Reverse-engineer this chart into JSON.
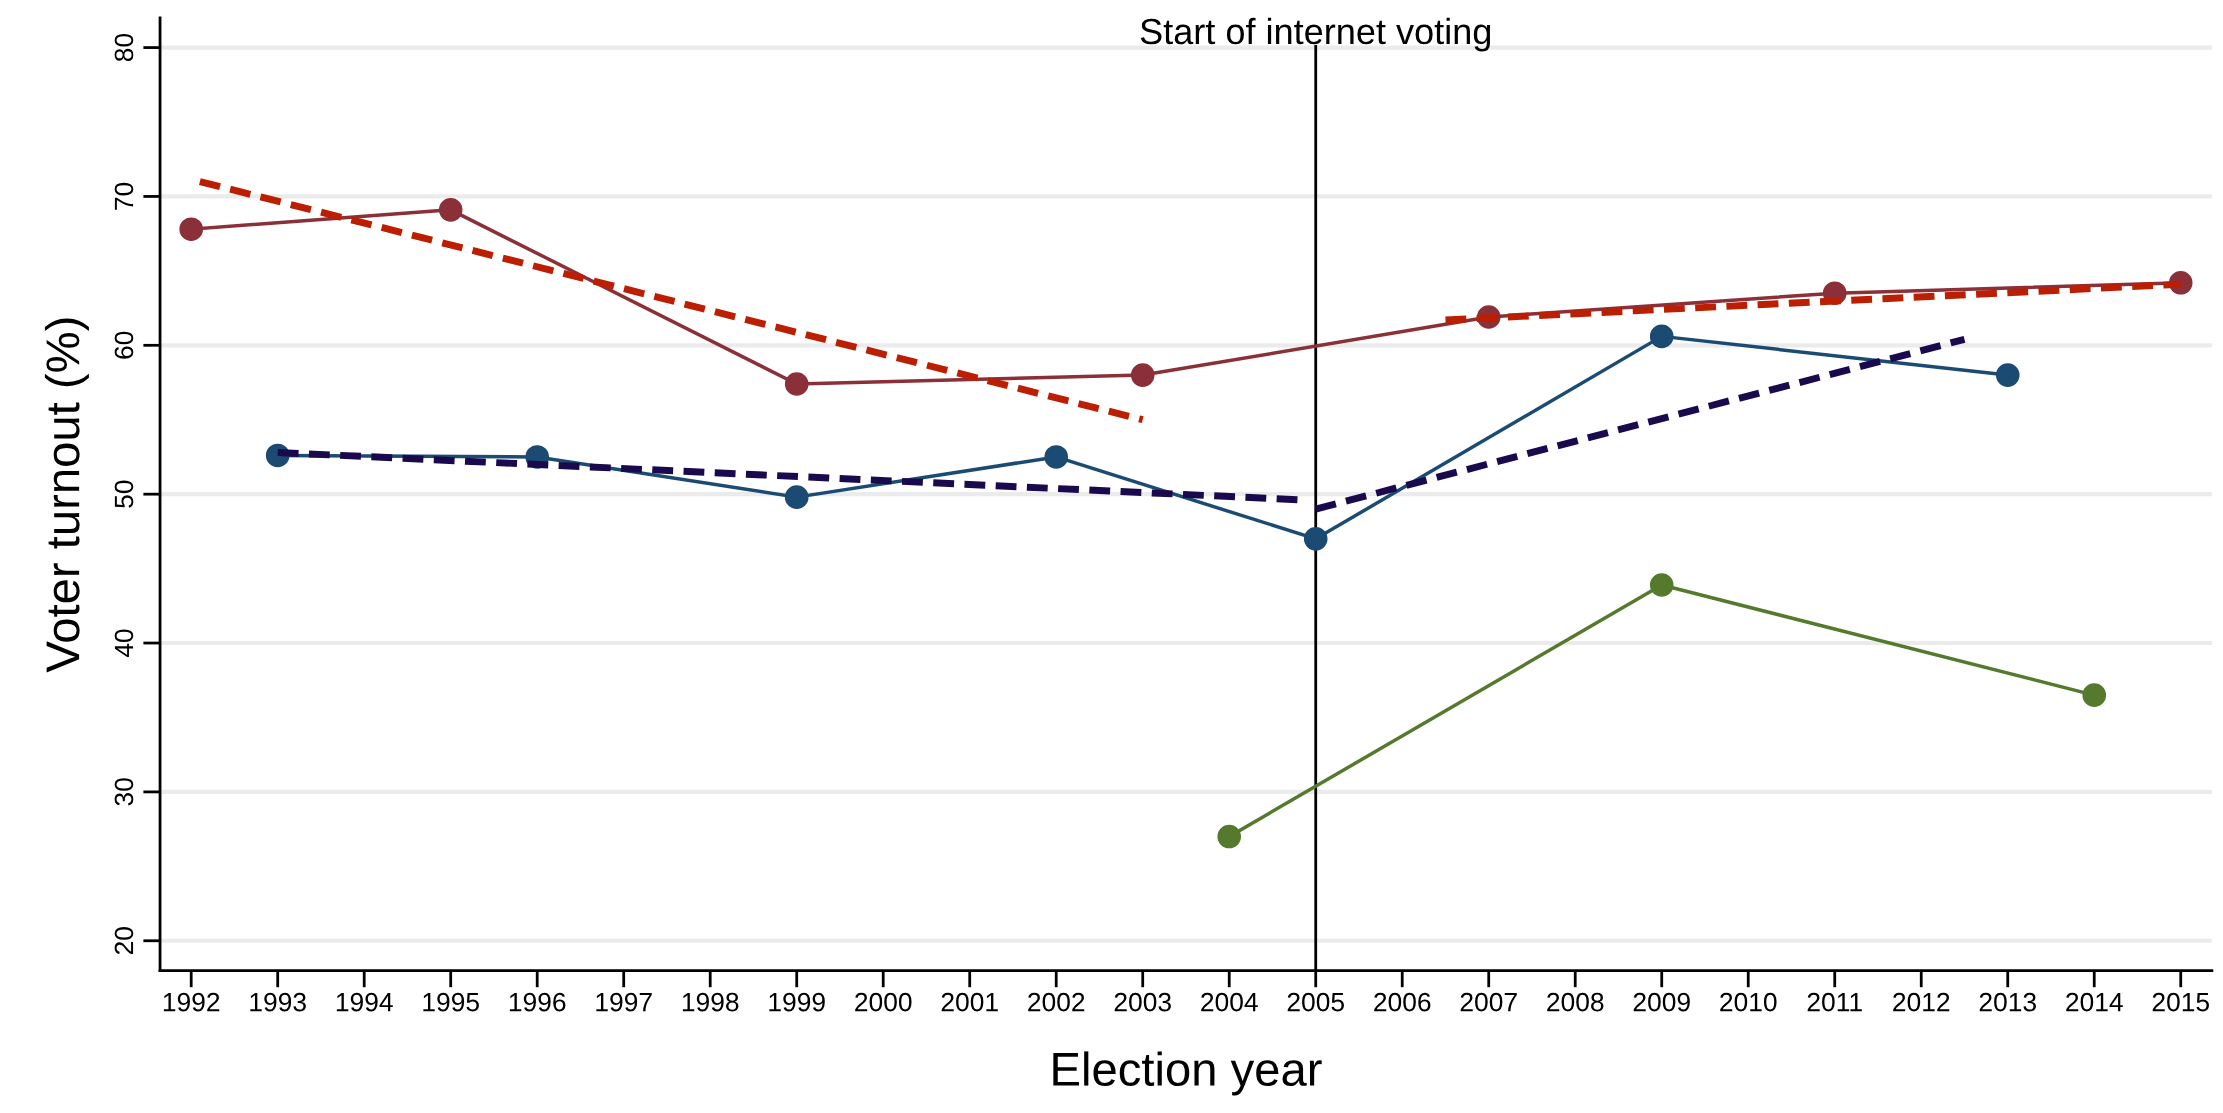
{
  "chart_data": {
    "type": "line",
    "xlabel": "Election year",
    "ylabel": "Voter turnout (%)",
    "xlim": [
      1991.64,
      2015.36
    ],
    "xticks": [
      1992,
      1993,
      1994,
      1995,
      1996,
      1997,
      1998,
      1999,
      2000,
      2001,
      2002,
      2003,
      2004,
      2005,
      2006,
      2007,
      2008,
      2009,
      2010,
      2011,
      2012,
      2013,
      2014,
      2015
    ],
    "ylim": [
      18,
      82
    ],
    "yticks": [
      20,
      30,
      40,
      50,
      60,
      70,
      80
    ],
    "grid": "y",
    "ref_lines": [
      {
        "axis": "x",
        "value": 2005,
        "label": "Start of internet voting",
        "color": "#000000",
        "line_style": "solid"
      }
    ],
    "series": [
      {
        "color": "#8b3038",
        "marker": "circle",
        "line_style": "solid",
        "x": [
          1992,
          1995,
          1999,
          2003,
          2007,
          2011,
          2015
        ],
        "values": [
          67.8,
          69.1,
          57.4,
          58.0,
          61.9,
          63.5,
          64.2
        ]
      },
      {
        "color": "#1b4a72",
        "marker": "circle",
        "line_style": "solid",
        "x": [
          1993,
          1996,
          1999,
          2002,
          2005,
          2009,
          2013
        ],
        "values": [
          52.6,
          52.5,
          49.8,
          52.5,
          47.0,
          60.6,
          58.0
        ]
      },
      {
        "color": "#557a2e",
        "marker": "circle",
        "line_style": "solid",
        "x": [
          2004,
          2009,
          2014
        ],
        "values": [
          27.0,
          43.9,
          36.5
        ]
      },
      {
        "color": "#bb1e00",
        "marker": "none",
        "line_style": "dashed",
        "x": [
          1992.1,
          2003.0
        ],
        "values": [
          71.0,
          55.0
        ]
      },
      {
        "color": "#bb1e00",
        "marker": "none",
        "line_style": "dashed",
        "x": [
          2006.5,
          2015.0
        ],
        "values": [
          61.7,
          64.1
        ]
      },
      {
        "color": "#1a0a4d",
        "marker": "none",
        "line_style": "dashed",
        "x": [
          1993.0,
          2004.9
        ],
        "values": [
          52.8,
          49.6
        ]
      },
      {
        "color": "#1a0a4d",
        "marker": "none",
        "line_style": "dashed",
        "x": [
          2005.0,
          2012.5
        ],
        "values": [
          49.0,
          60.4
        ]
      }
    ]
  }
}
